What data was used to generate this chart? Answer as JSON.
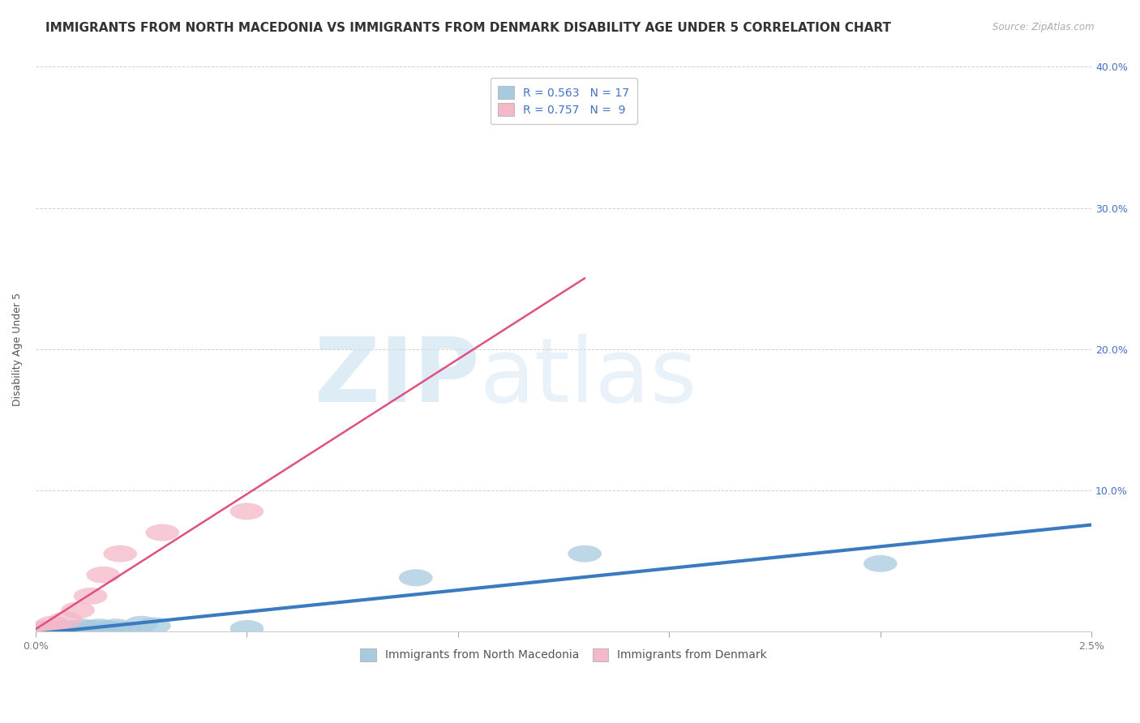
{
  "title": "IMMIGRANTS FROM NORTH MACEDONIA VS IMMIGRANTS FROM DENMARK DISABILITY AGE UNDER 5 CORRELATION CHART",
  "source": "Source: ZipAtlas.com",
  "ylabel": "Disability Age Under 5",
  "xlim": [
    0.0,
    0.025
  ],
  "ylim": [
    0.0,
    0.4
  ],
  "yticks": [
    0.0,
    0.1,
    0.2,
    0.3,
    0.4
  ],
  "xtick_labels_show": [
    "0.0%",
    "2.5%"
  ],
  "xtick_positions_show": [
    0.0,
    0.025
  ],
  "right_ytick_labels": [
    "",
    "10.0%",
    "20.0%",
    "30.0%",
    "40.0%"
  ],
  "blue_color": "#a8cadf",
  "pink_color": "#f4b8c8",
  "blue_line_color": "#3a7abf",
  "pink_line_color": "#e05080",
  "blue_label": "Immigrants from North Macedonia",
  "pink_label": "Immigrants from Denmark",
  "R_blue": 0.563,
  "N_blue": 17,
  "R_pink": 0.757,
  "N_pink": 9,
  "watermark_zip": "ZIP",
  "watermark_atlas": "atlas",
  "legend_color": "#4472c4",
  "title_fontsize": 11,
  "axis_label_fontsize": 9,
  "tick_fontsize": 9,
  "legend_fontsize": 10,
  "blue_x": [
    0.0002,
    0.0004,
    0.0006,
    0.0007,
    0.0009,
    0.0011,
    0.0013,
    0.0015,
    0.0017,
    0.0019,
    0.0021,
    0.0025,
    0.0028,
    0.005,
    0.009,
    0.013,
    0.02
  ],
  "blue_y": [
    0.001,
    0.001,
    0.001,
    0.002,
    0.001,
    0.003,
    0.002,
    0.003,
    0.002,
    0.003,
    0.001,
    0.005,
    0.004,
    0.002,
    0.038,
    0.055,
    0.048
  ],
  "pink_x": [
    0.0002,
    0.0004,
    0.0007,
    0.001,
    0.0013,
    0.0016,
    0.002,
    0.003,
    0.005
  ],
  "pink_y": [
    0.002,
    0.005,
    0.008,
    0.015,
    0.025,
    0.04,
    0.055,
    0.07,
    0.085
  ],
  "pink_line_x_end": 0.013
}
